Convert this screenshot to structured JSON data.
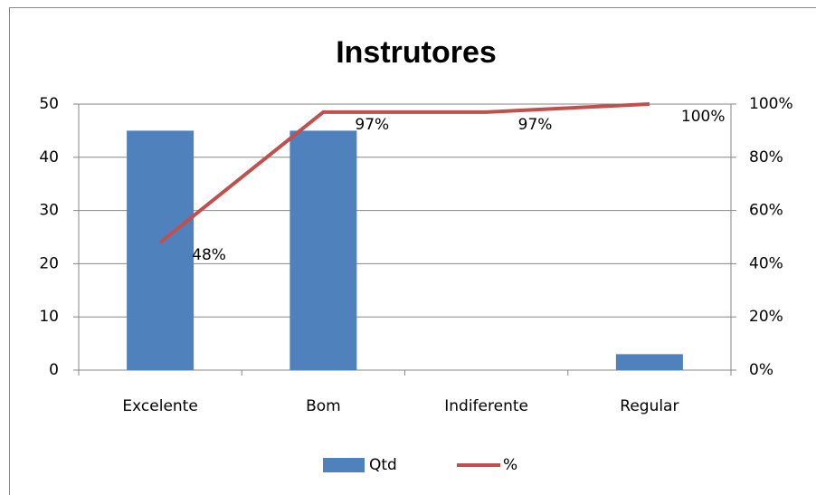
{
  "chart_data": {
    "type": "bar",
    "title": "Instrutores",
    "categories": [
      "Excelente",
      "Bom",
      "Indiferente",
      "Regular"
    ],
    "series": [
      {
        "name": "Qtd",
        "type": "bar",
        "color": "#4f81bd",
        "values": [
          45,
          45,
          0,
          3
        ]
      },
      {
        "name": "%",
        "type": "line",
        "axis": "y2",
        "color": "#c0504d",
        "values": [
          48,
          97,
          97,
          100
        ],
        "value_labels": [
          "48%",
          "97%",
          "97%",
          "100%"
        ]
      }
    ],
    "ylim": [
      0,
      50
    ],
    "yticks": [
      0,
      10,
      20,
      30,
      40,
      50
    ],
    "y2lim": [
      0,
      100
    ],
    "y2ticks": [
      {
        "value": 0,
        "label": "0%"
      },
      {
        "value": 20,
        "label": "20%"
      },
      {
        "value": 40,
        "label": "40%"
      },
      {
        "value": 60,
        "label": "60%"
      },
      {
        "value": 80,
        "label": "80%"
      },
      {
        "value": 100,
        "label": "100%"
      }
    ],
    "grid": true,
    "legend": "bottom"
  }
}
